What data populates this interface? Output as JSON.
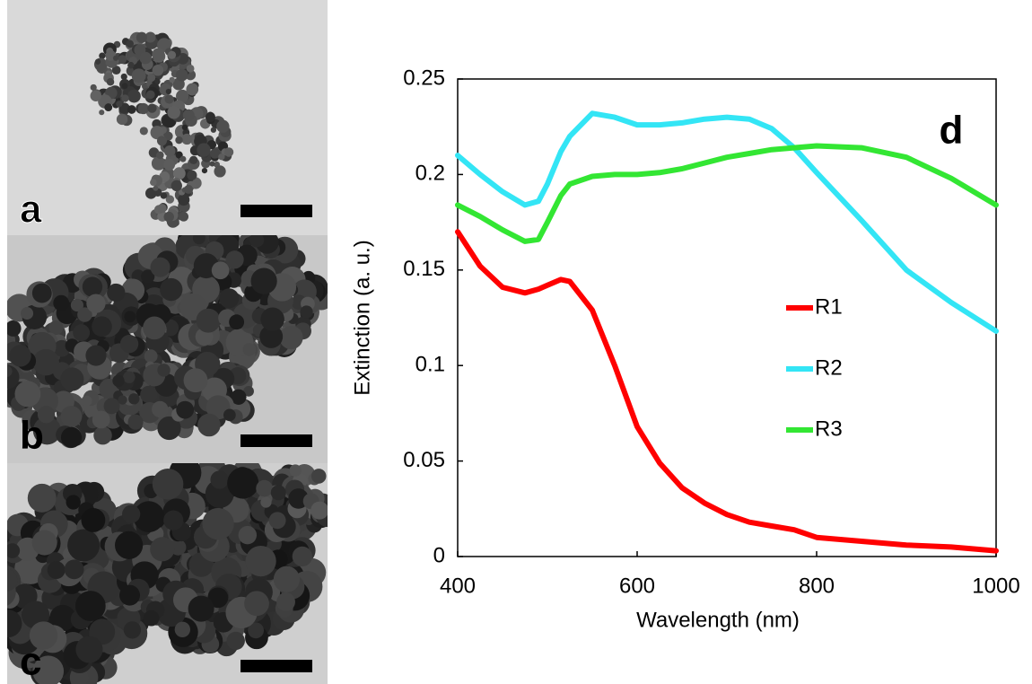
{
  "panels": [
    {
      "label": "a"
    },
    {
      "label": "b"
    },
    {
      "label": "c"
    }
  ],
  "chart_data": {
    "type": "line",
    "panel_label": "d",
    "x_label": "Wavelength (nm)",
    "y_label": "Extinction (a. u.)",
    "x": [
      400,
      425,
      450,
      475,
      490,
      500,
      515,
      525,
      550,
      575,
      600,
      625,
      650,
      675,
      700,
      725,
      750,
      775,
      800,
      850,
      900,
      950,
      1000
    ],
    "series": [
      {
        "name": "R1",
        "color": "#ff0000",
        "values": [
          0.17,
          0.152,
          0.141,
          0.138,
          0.14,
          0.142,
          0.145,
          0.144,
          0.129,
          0.1,
          0.068,
          0.049,
          0.036,
          0.028,
          0.022,
          0.018,
          0.016,
          0.014,
          0.01,
          0.008,
          0.006,
          0.005,
          0.003
        ]
      },
      {
        "name": "R2",
        "color": "#33e5f5",
        "values": [
          0.21,
          0.2,
          0.191,
          0.184,
          0.186,
          0.195,
          0.212,
          0.22,
          0.232,
          0.23,
          0.226,
          0.226,
          0.227,
          0.229,
          0.23,
          0.229,
          0.224,
          0.214,
          0.201,
          0.176,
          0.15,
          0.133,
          0.118
        ]
      },
      {
        "name": "R3",
        "color": "#33e633",
        "values": [
          0.184,
          0.178,
          0.171,
          0.165,
          0.166,
          0.175,
          0.189,
          0.195,
          0.199,
          0.2,
          0.2,
          0.201,
          0.203,
          0.206,
          0.209,
          0.211,
          0.213,
          0.214,
          0.215,
          0.214,
          0.209,
          0.198,
          0.184
        ]
      }
    ],
    "xlim": [
      400,
      1000
    ],
    "xticks": [
      400,
      600,
      800,
      1000
    ],
    "ylim": [
      0,
      0.25
    ],
    "yticks": [
      0,
      0.05,
      0.1,
      0.15,
      0.2,
      0.25
    ],
    "grid": false,
    "legend": "center-right"
  }
}
